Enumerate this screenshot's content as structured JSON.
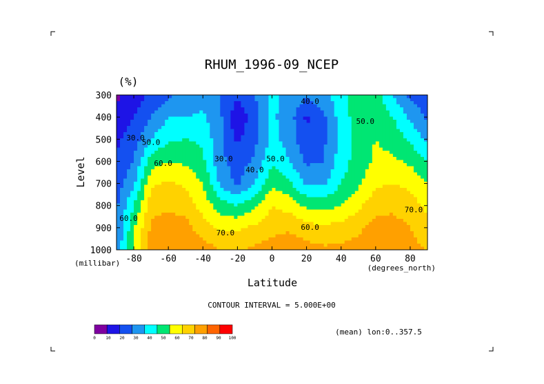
{
  "chart_data": {
    "type": "heatmap",
    "title": "RHUM_1996-09_NCEP",
    "unit_label": "(%)",
    "xlabel": "Latitude",
    "ylabel": "Level",
    "x_unit": "(degrees_north)",
    "y_unit": "(millibar)",
    "xlim": [
      -90,
      90
    ],
    "ylim": [
      1000,
      300
    ],
    "x_ticks": [
      "-80",
      "-60",
      "-40",
      "-20",
      "0",
      "20",
      "40",
      "60",
      "80"
    ],
    "x_tick_values": [
      -80,
      -60,
      -40,
      -20,
      0,
      20,
      40,
      60,
      80
    ],
    "y_ticks": [
      "300",
      "400",
      "500",
      "600",
      "700",
      "800",
      "900",
      "1000"
    ],
    "y_tick_values": [
      300,
      400,
      500,
      600,
      700,
      800,
      900,
      1000
    ],
    "contour_interval_text": "CONTOUR INTERVAL = 5.000E+00",
    "subset_text": "(mean) lon:0..357.5",
    "colorbar": {
      "ticks": [
        "0",
        "10",
        "20",
        "30",
        "40",
        "50",
        "60",
        "70",
        "80",
        "90",
        "100"
      ],
      "colors": [
        "#7f00a0",
        "#1e14e6",
        "#1450f0",
        "#1e96f0",
        "#00ffff",
        "#00e673",
        "#ffff00",
        "#ffd200",
        "#ffa000",
        "#ff6400",
        "#ff0000"
      ]
    },
    "contour_labels": [
      {
        "text": "40.0",
        "lat": 22,
        "lev": 340
      },
      {
        "text": "50.0",
        "lat": 54,
        "lev": 430
      },
      {
        "text": "30.0",
        "lat": -79,
        "lev": 505
      },
      {
        "text": "50.0",
        "lat": -70,
        "lev": 525
      },
      {
        "text": "30.0",
        "lat": -28,
        "lev": 600
      },
      {
        "text": "40.0",
        "lat": -10,
        "lev": 650
      },
      {
        "text": "50.0",
        "lat": 2,
        "lev": 600
      },
      {
        "text": "60.0",
        "lat": -63,
        "lev": 620
      },
      {
        "text": "60.0",
        "lat": -83,
        "lev": 870
      },
      {
        "text": "70.0",
        "lat": -27,
        "lev": 935
      },
      {
        "text": "60.0",
        "lat": 22,
        "lev": 910
      },
      {
        "text": "70.0",
        "lat": 82,
        "lev": 830
      }
    ],
    "grid": false,
    "field_rows_lev": [
      300,
      400,
      500,
      600,
      700,
      800,
      900,
      1000
    ],
    "field_cols_lat": [
      -90,
      -80,
      -70,
      -60,
      -50,
      -40,
      -30,
      -20,
      -10,
      0,
      10,
      20,
      30,
      40,
      50,
      60,
      70,
      80,
      90
    ],
    "field_values": [
      [
        8,
        15,
        22,
        28,
        33,
        35,
        30,
        22,
        30,
        42,
        38,
        32,
        38,
        45,
        58,
        55,
        40,
        28,
        22
      ],
      [
        12,
        20,
        30,
        40,
        40,
        42,
        32,
        12,
        26,
        42,
        35,
        18,
        28,
        45,
        55,
        58,
        50,
        38,
        28
      ],
      [
        18,
        25,
        40,
        48,
        50,
        48,
        32,
        18,
        27,
        43,
        36,
        22,
        28,
        44,
        55,
        60,
        56,
        48,
        38
      ],
      [
        22,
        30,
        55,
        60,
        58,
        52,
        33,
        25,
        32,
        48,
        40,
        28,
        30,
        45,
        55,
        62,
        62,
        58,
        50
      ],
      [
        25,
        38,
        68,
        72,
        68,
        60,
        38,
        28,
        40,
        58,
        52,
        38,
        38,
        50,
        58,
        68,
        70,
        68,
        60
      ],
      [
        28,
        50,
        76,
        78,
        75,
        66,
        55,
        50,
        58,
        70,
        66,
        58,
        56,
        60,
        68,
        76,
        78,
        74,
        68
      ],
      [
        30,
        58,
        82,
        86,
        84,
        74,
        68,
        68,
        72,
        76,
        78,
        74,
        72,
        74,
        78,
        84,
        84,
        80,
        72
      ],
      [
        32,
        62,
        85,
        90,
        90,
        85,
        80,
        78,
        82,
        86,
        88,
        84,
        82,
        82,
        84,
        90,
        88,
        84,
        80
      ]
    ]
  },
  "corner_marks": {
    "tl": "⌐",
    "tr": "¬",
    "bl": "L",
    "br": "┘"
  }
}
